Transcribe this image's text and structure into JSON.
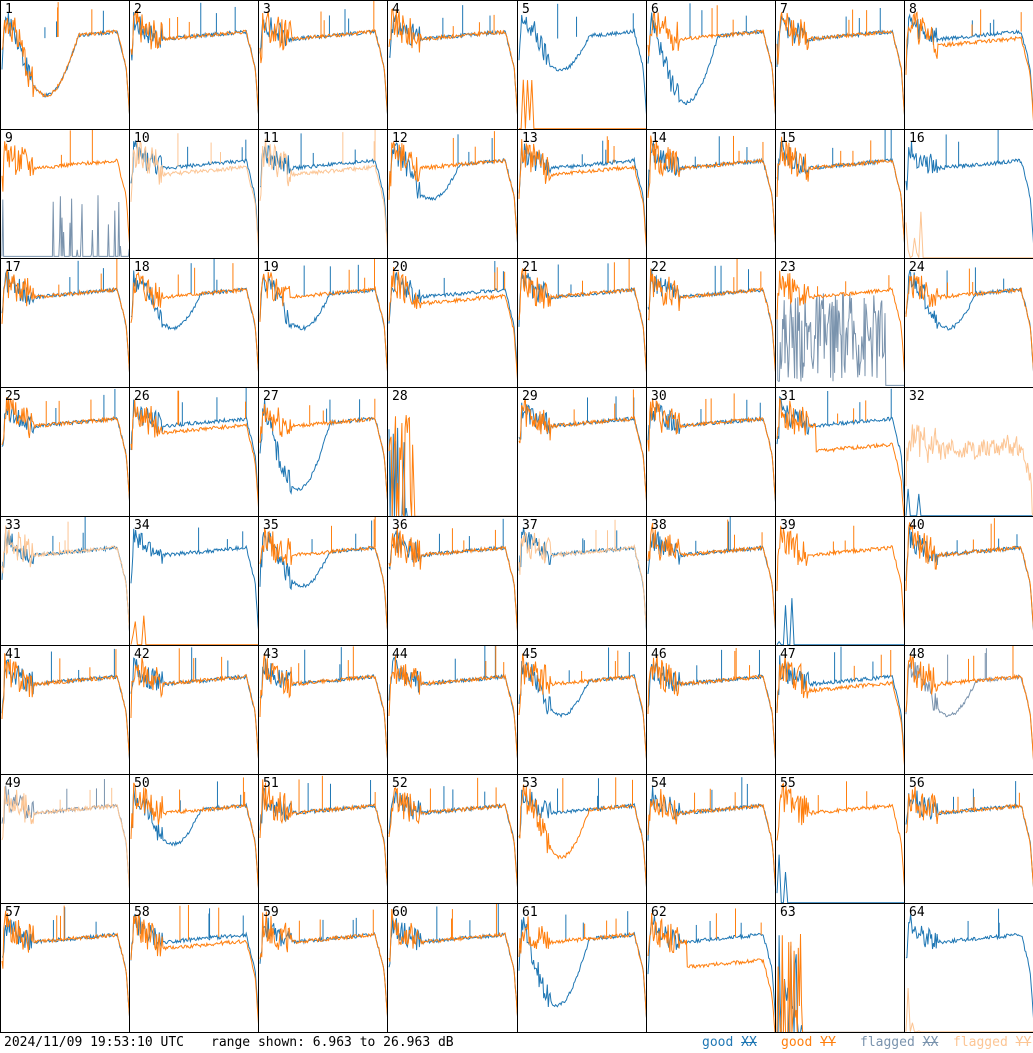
{
  "timestamp": "2024/11/09 19:53:10 UTC",
  "range_text": "range shown: 6.963 to 26.963 dB",
  "legend": [
    {
      "key": "good_xx",
      "word": "good",
      "pol": "XX",
      "color": "#1f77b4"
    },
    {
      "key": "good_yy",
      "word": "good",
      "pol": "YY",
      "color": "#ff7f0e"
    },
    {
      "key": "flagged_xx",
      "word": "flagged",
      "pol": "XX",
      "color": "#7a93ad"
    },
    {
      "key": "flagged_yy",
      "word": "flagged",
      "pol": "YY",
      "color": "#fcc594"
    }
  ],
  "chart_data": {
    "type": "line",
    "description": "",
    "ylim": [
      6.963,
      26.963
    ],
    "y_unit": "dB",
    "series_colors": {
      "good_xx": "#1f77b4",
      "good_yy": "#ff7f0e",
      "flagged_xx": "#7a93ad",
      "flagged_yy": "#fcc594"
    },
    "panels": [
      {
        "id": 1,
        "xx": "good",
        "yy": "good",
        "shape": "deep-dip"
      },
      {
        "id": 2,
        "xx": "good",
        "yy": "good",
        "shape": "normal"
      },
      {
        "id": 3,
        "xx": "good",
        "yy": "good",
        "shape": "normal"
      },
      {
        "id": 4,
        "xx": "good",
        "yy": "good",
        "shape": "normal"
      },
      {
        "id": 5,
        "xx": "good",
        "yy": "good",
        "shape": "xx-dip",
        "yy_shape": "dead"
      },
      {
        "id": 6,
        "xx": "good",
        "yy": "good",
        "shape": "xx-deep-dip"
      },
      {
        "id": 7,
        "xx": "good",
        "yy": "good",
        "shape": "normal"
      },
      {
        "id": 8,
        "xx": "good",
        "yy": "good",
        "shape": "split"
      },
      {
        "id": 9,
        "xx": "flagged",
        "yy": "good",
        "shape": "normal",
        "xx_shape": "spikes"
      },
      {
        "id": 10,
        "xx": "good",
        "yy": "flagged",
        "shape": "split"
      },
      {
        "id": 11,
        "xx": "good",
        "yy": "flagged",
        "shape": "split"
      },
      {
        "id": 12,
        "xx": "good",
        "yy": "good",
        "shape": "split-dip"
      },
      {
        "id": 13,
        "xx": "good",
        "yy": "good",
        "shape": "split"
      },
      {
        "id": 14,
        "xx": "good",
        "yy": "good",
        "shape": "normal"
      },
      {
        "id": 15,
        "xx": "good",
        "yy": "good",
        "shape": "normal"
      },
      {
        "id": 16,
        "xx": "good",
        "yy": "flagged",
        "shape": "normal",
        "yy_shape": "dead"
      },
      {
        "id": 17,
        "xx": "good",
        "yy": "good",
        "shape": "normal"
      },
      {
        "id": 18,
        "xx": "good",
        "yy": "good",
        "shape": "split-dip"
      },
      {
        "id": 19,
        "xx": "good",
        "yy": "good",
        "shape": "xx-dip"
      },
      {
        "id": 20,
        "xx": "good",
        "yy": "good",
        "shape": "split"
      },
      {
        "id": 21,
        "xx": "good",
        "yy": "good",
        "shape": "normal"
      },
      {
        "id": 22,
        "xx": "good",
        "yy": "good",
        "shape": "normal"
      },
      {
        "id": 23,
        "xx": "flagged",
        "yy": "good",
        "shape": "normal",
        "xx_shape": "noise"
      },
      {
        "id": 24,
        "xx": "good",
        "yy": "good",
        "shape": "split-dip"
      },
      {
        "id": 25,
        "xx": "good",
        "yy": "good",
        "shape": "normal"
      },
      {
        "id": 26,
        "xx": "good",
        "yy": "good",
        "shape": "split"
      },
      {
        "id": 27,
        "xx": "good",
        "yy": "good",
        "shape": "xx-deep-dip"
      },
      {
        "id": 28,
        "xx": "good",
        "yy": "good",
        "shape": "dead-both"
      },
      {
        "id": 29,
        "xx": "good",
        "yy": "good",
        "shape": "normal"
      },
      {
        "id": 30,
        "xx": "good",
        "yy": "good",
        "shape": "normal"
      },
      {
        "id": 31,
        "xx": "good",
        "yy": "good",
        "shape": "split-yylow"
      },
      {
        "id": 32,
        "xx": "good",
        "yy": "flagged",
        "shape": "normal",
        "xx_shape": "dead",
        "yy_shape": "noisy"
      },
      {
        "id": 33,
        "xx": "good",
        "yy": "flagged",
        "shape": "normal"
      },
      {
        "id": 34,
        "xx": "good",
        "yy": "good",
        "shape": "normal",
        "yy_shape": "dead"
      },
      {
        "id": 35,
        "xx": "good",
        "yy": "good",
        "shape": "split-dip"
      },
      {
        "id": 36,
        "xx": "good",
        "yy": "good",
        "shape": "normal"
      },
      {
        "id": 37,
        "xx": "good",
        "yy": "flagged",
        "shape": "normal"
      },
      {
        "id": 38,
        "xx": "good",
        "yy": "good",
        "shape": "normal"
      },
      {
        "id": 39,
        "xx": "good",
        "yy": "good",
        "shape": "normal",
        "xx_shape": "dead"
      },
      {
        "id": 40,
        "xx": "good",
        "yy": "good",
        "shape": "normal"
      },
      {
        "id": 41,
        "xx": "good",
        "yy": "good",
        "shape": "normal"
      },
      {
        "id": 42,
        "xx": "good",
        "yy": "good",
        "shape": "normal"
      },
      {
        "id": 43,
        "xx": "good",
        "yy": "good",
        "shape": "normal"
      },
      {
        "id": 44,
        "xx": "good",
        "yy": "good",
        "shape": "normal"
      },
      {
        "id": 45,
        "xx": "good",
        "yy": "good",
        "shape": "xx-dip"
      },
      {
        "id": 46,
        "xx": "good",
        "yy": "good",
        "shape": "normal"
      },
      {
        "id": 47,
        "xx": "good",
        "yy": "good",
        "shape": "split"
      },
      {
        "id": 48,
        "xx": "flagged",
        "yy": "good",
        "shape": "split-dip"
      },
      {
        "id": 49,
        "xx": "flagged",
        "yy": "flagged",
        "shape": "normal"
      },
      {
        "id": 50,
        "xx": "good",
        "yy": "good",
        "shape": "split-dip"
      },
      {
        "id": 51,
        "xx": "good",
        "yy": "good",
        "shape": "normal"
      },
      {
        "id": 52,
        "xx": "good",
        "yy": "good",
        "shape": "normal"
      },
      {
        "id": 53,
        "xx": "good",
        "yy": "good",
        "shape": "yy-dip"
      },
      {
        "id": 54,
        "xx": "good",
        "yy": "good",
        "shape": "normal"
      },
      {
        "id": 55,
        "xx": "good",
        "yy": "good",
        "shape": "normal",
        "xx_shape": "dead"
      },
      {
        "id": 56,
        "xx": "good",
        "yy": "good",
        "shape": "normal"
      },
      {
        "id": 57,
        "xx": "good",
        "yy": "good",
        "shape": "normal"
      },
      {
        "id": 58,
        "xx": "good",
        "yy": "good",
        "shape": "split"
      },
      {
        "id": 59,
        "xx": "good",
        "yy": "good",
        "shape": "normal"
      },
      {
        "id": 60,
        "xx": "good",
        "yy": "good",
        "shape": "normal"
      },
      {
        "id": 61,
        "xx": "good",
        "yy": "good",
        "shape": "xx-deep-dip"
      },
      {
        "id": 62,
        "xx": "good",
        "yy": "good",
        "shape": "split-yylow"
      },
      {
        "id": 63,
        "xx": "good",
        "yy": "good",
        "shape": "dead-both"
      },
      {
        "id": 64,
        "xx": "good",
        "yy": "flagged",
        "shape": "normal",
        "yy_shape": "dead"
      }
    ]
  }
}
